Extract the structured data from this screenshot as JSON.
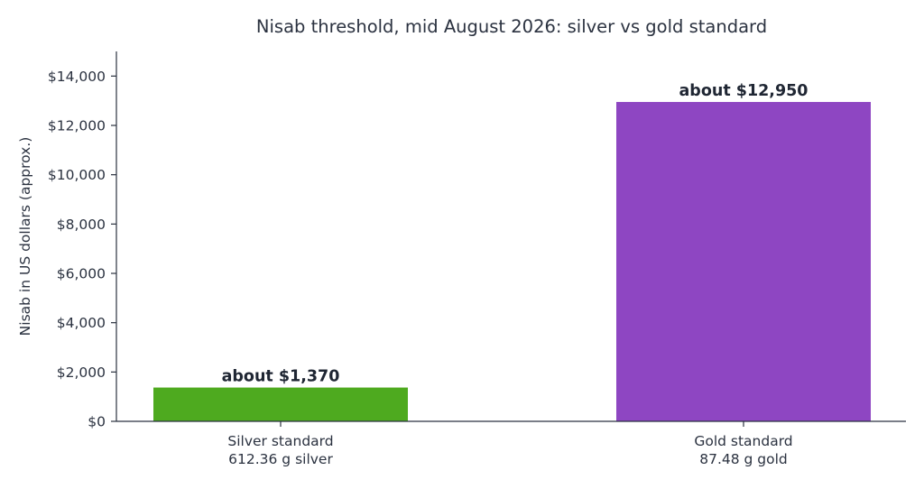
{
  "chart_data": {
    "type": "bar",
    "title": "Nisab threshold, mid August 2026: silver vs gold standard",
    "xlabel": "",
    "ylabel": "Nisab in US dollars (approx.)",
    "ylim": [
      0,
      15000
    ],
    "yticks": [
      0,
      2000,
      4000,
      6000,
      8000,
      10000,
      12000,
      14000
    ],
    "ytick_labels": [
      "$0",
      "$2,000",
      "$4,000",
      "$6,000",
      "$8,000",
      "$10,000",
      "$12,000",
      "$14,000"
    ],
    "categories": [
      [
        "Silver standard",
        "612.36 g silver"
      ],
      [
        "Gold standard",
        "87.48 g gold"
      ]
    ],
    "values": [
      1370,
      12950
    ],
    "data_labels": [
      "about $1,370",
      "about $12,950"
    ],
    "colors": [
      "#4eaa1f",
      "#8e46c2"
    ],
    "grid": false,
    "legend": "none"
  }
}
